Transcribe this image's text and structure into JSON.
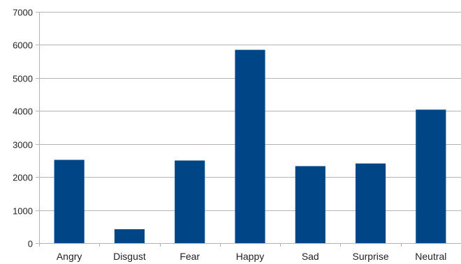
{
  "chart_data": {
    "type": "bar",
    "title": "",
    "xlabel": "",
    "ylabel": "",
    "categories": [
      "Angry",
      "Disgust",
      "Fear",
      "Happy",
      "Sad",
      "Surprise",
      "Neutral"
    ],
    "values": [
      2520,
      420,
      2500,
      5850,
      2330,
      2410,
      4040
    ],
    "ylim": [
      0,
      7000
    ],
    "yticks": [
      0,
      1000,
      2000,
      3000,
      4000,
      5000,
      6000,
      7000
    ],
    "ytick_labels": [
      "0",
      "1000",
      "2000",
      "3000",
      "4000",
      "5000",
      "6000",
      "7000"
    ],
    "grid": true,
    "legend": "none",
    "colors": {
      "bar": "#004586",
      "grid": "#b3b3b3",
      "axis": "#b3b3b3",
      "text": "#222222"
    }
  }
}
